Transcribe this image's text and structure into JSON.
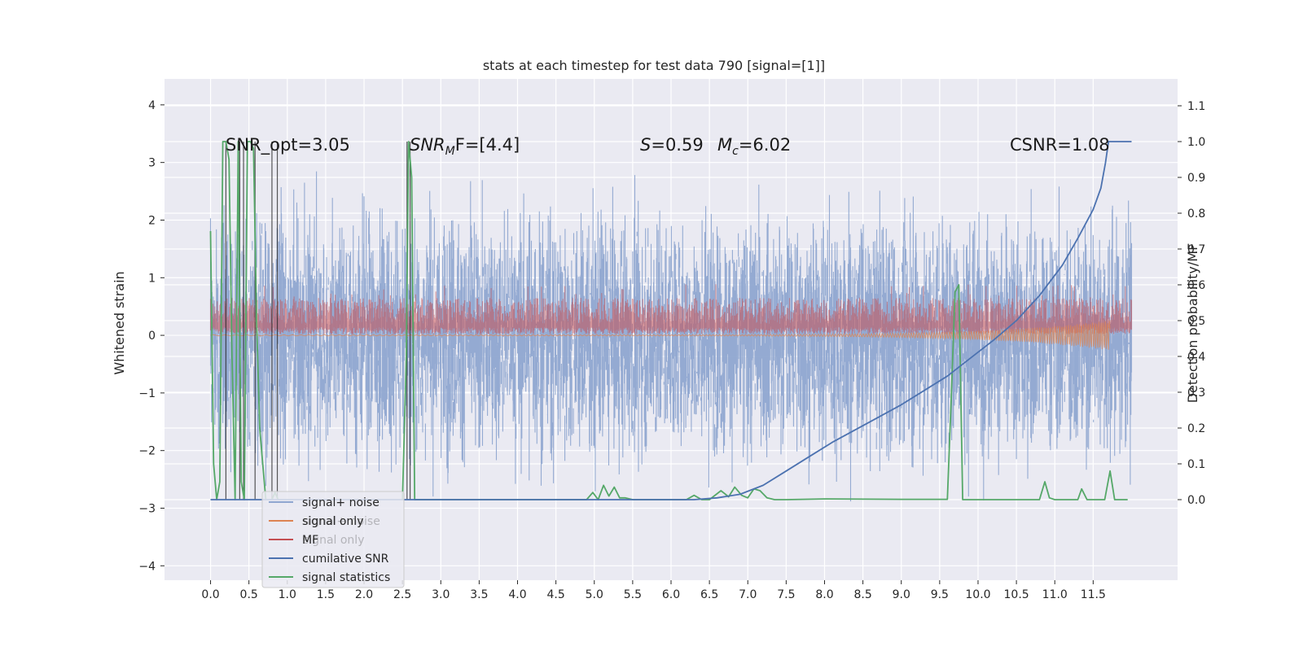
{
  "chart_data": {
    "type": "line",
    "title": "stats at each timestep for test data 790 [signal=[1]]",
    "ylabel": "Whitened strain",
    "ylabel_right": "Detection probability/MF",
    "xlabel": "",
    "xlim": [
      -0.6,
      12.6
    ],
    "ylim": [
      -4.25,
      4.45
    ],
    "ylim_right": [
      -0.225,
      1.175
    ],
    "x_ticks": [
      0.0,
      0.5,
      1.0,
      1.5,
      2.0,
      2.5,
      3.0,
      3.5,
      4.0,
      4.5,
      5.0,
      5.5,
      6.0,
      6.5,
      7.0,
      7.5,
      8.0,
      8.5,
      9.0,
      9.5,
      10.0,
      10.5,
      11.0,
      11.5
    ],
    "x_tick_labels": [
      "0.0",
      "0.5",
      "1.0",
      "1.5",
      "2.0",
      "2.5",
      "3.0",
      "3.5",
      "4.0",
      "4.5",
      "5.0",
      "5.5",
      "6.0",
      "6.5",
      "7.0",
      "7.5",
      "8.0",
      "8.5",
      "9.0",
      "9.5",
      "10.0",
      "10.5",
      "11.0",
      "11.5"
    ],
    "y_ticks": [
      -4,
      -3,
      -2,
      -1,
      0,
      1,
      2,
      3,
      4
    ],
    "y_tick_labels": [
      "−4",
      "−3",
      "−2",
      "−1",
      "0",
      "1",
      "2",
      "3",
      "4"
    ],
    "y_right_ticks": [
      0.0,
      0.1,
      0.2,
      0.3,
      0.4,
      0.5,
      0.6,
      0.7,
      0.8,
      0.9,
      1.0,
      1.1
    ],
    "y_right_tick_labels": [
      "0.0",
      "0.1",
      "0.2",
      "0.3",
      "0.4",
      "0.5",
      "0.6",
      "0.7",
      "0.8",
      "0.9",
      "1.0",
      "1.1"
    ],
    "grid": true,
    "legend_position": "lower-left",
    "legend": [
      "signal+ noise",
      "signal only",
      "MF",
      "cumilative SNR",
      "signal statistics"
    ],
    "legend_ghost": [
      "signal+ noise",
      "signal only"
    ],
    "annotations": {
      "snr_opt": "SNR_opt=3.05",
      "snr_mf_base": "SNR",
      "snr_mf_sub": "M",
      "snr_mf_rest": "F=[4.4]",
      "s_label": "S",
      "s_value": "=0.59",
      "mc_label": "M",
      "mc_sub": "c",
      "mc_value": "=6.02",
      "csnr": "CSNR=1.08"
    },
    "colors": {
      "signal_noise": "#8fa6d0",
      "signal_only": "#dd8452",
      "mf": "#c44e52",
      "cumulative_snr": "#4c72b0",
      "signal_statistics": "#55a868",
      "event_lines": "#222222",
      "background": "#eaeaf2",
      "grid": "#ffffff"
    },
    "series": [
      {
        "name": "cumilative SNR",
        "axis": "right",
        "x": [
          0.0,
          6.0,
          6.3,
          6.6,
          6.9,
          7.2,
          7.5,
          7.8,
          8.1,
          8.4,
          8.7,
          9.0,
          9.3,
          9.6,
          9.9,
          10.2,
          10.5,
          10.8,
          11.1,
          11.3,
          11.5,
          11.6,
          11.66,
          11.7,
          12.0
        ],
        "y": [
          0.0,
          0.0,
          0.0,
          0.005,
          0.015,
          0.04,
          0.08,
          0.12,
          0.16,
          0.195,
          0.23,
          0.265,
          0.305,
          0.345,
          0.395,
          0.445,
          0.5,
          0.57,
          0.655,
          0.73,
          0.81,
          0.87,
          0.94,
          1.0,
          1.0
        ]
      },
      {
        "name": "signal statistics",
        "axis": "right",
        "x": [
          0.0,
          0.04,
          0.08,
          0.12,
          0.16,
          0.2,
          0.24,
          0.28,
          0.32,
          0.36,
          0.4,
          0.44,
          0.48,
          0.52,
          0.56,
          0.6,
          0.64,
          0.68,
          0.72,
          0.76,
          0.8,
          0.84,
          0.88,
          0.92,
          1.0,
          2.4,
          2.5,
          2.55,
          2.58,
          2.62,
          2.66,
          2.7,
          2.75,
          3.0,
          4.8,
          4.9,
          4.98,
          5.05,
          5.12,
          5.19,
          5.26,
          5.33,
          5.4,
          5.5,
          6.2,
          6.3,
          6.4,
          6.5,
          6.65,
          6.75,
          6.83,
          6.92,
          7.0,
          7.08,
          7.16,
          7.25,
          7.35,
          7.5,
          8.0,
          9.0,
          9.6,
          9.65,
          9.7,
          9.75,
          9.8,
          9.85,
          9.9,
          10.8,
          10.87,
          10.93,
          11.0,
          11.3,
          11.35,
          11.42,
          11.5,
          11.65,
          11.72,
          11.78,
          11.85,
          11.95
        ],
        "y": [
          0.75,
          0.1,
          0.0,
          0.05,
          1.0,
          1.0,
          0.95,
          0.4,
          0.0,
          1.0,
          0.05,
          0.0,
          1.0,
          1.0,
          0.98,
          0.5,
          0.2,
          0.1,
          0.0,
          0.0,
          0.0,
          0.02,
          0.0,
          0.0,
          0.0,
          0.0,
          0.0,
          0.4,
          1.0,
          0.9,
          0.0,
          0.0,
          0.0,
          0.0,
          0.0,
          0.0,
          0.02,
          0.0,
          0.04,
          0.01,
          0.035,
          0.005,
          0.005,
          0.0,
          0.0,
          0.012,
          0.0,
          0.0,
          0.025,
          0.008,
          0.035,
          0.012,
          0.005,
          0.03,
          0.025,
          0.005,
          0.0,
          0.0,
          0.002,
          0.001,
          0.001,
          0.28,
          0.58,
          0.6,
          0.0,
          0.0,
          0.0,
          0.0,
          0.05,
          0.005,
          0.0,
          0.0,
          0.03,
          0.0,
          0.0,
          0.0,
          0.08,
          0.0,
          0.0,
          0.0
        ]
      }
    ],
    "event_lines_x": [
      0.2,
      0.38,
      0.43,
      0.58,
      0.8,
      0.87,
      2.56,
      2.6
    ]
  }
}
